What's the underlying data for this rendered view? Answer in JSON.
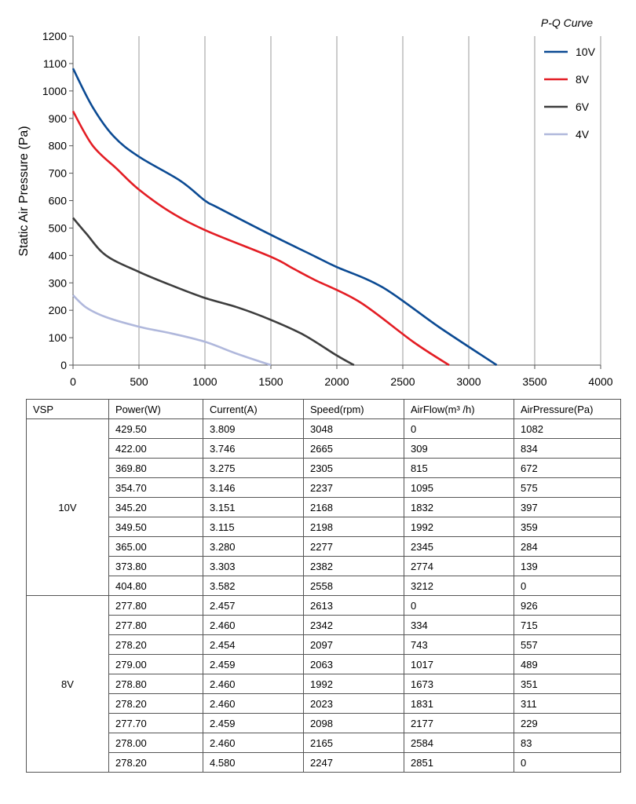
{
  "chart_data": {
    "type": "line",
    "title": "P-Q Curve",
    "xlabel": "",
    "ylabel": "Static Air Pressure  (Pa)",
    "xlim": [
      0,
      4000
    ],
    "ylim": [
      0,
      1200
    ],
    "xticks": [
      0,
      500,
      1000,
      1500,
      2000,
      2500,
      3000,
      3500,
      4000
    ],
    "yticks": [
      0,
      100,
      200,
      300,
      400,
      500,
      600,
      700,
      800,
      900,
      1000,
      1100,
      1200
    ],
    "grid": "vertical",
    "legend_position": "top-right",
    "series": [
      {
        "name": "10V",
        "color": "#0b4a93",
        "x": [
          0,
          150,
          309,
          500,
          815,
          1000,
          1095,
          1500,
          1832,
          1992,
          2345,
          2774,
          3212
        ],
        "y": [
          1082,
          940,
          834,
          760,
          672,
          600,
          575,
          475,
          397,
          359,
          284,
          139,
          0
        ]
      },
      {
        "name": "8V",
        "color": "#e31d24",
        "x": [
          0,
          150,
          334,
          500,
          743,
          1017,
          1500,
          1673,
          1831,
          2177,
          2584,
          2851
        ],
        "y": [
          926,
          800,
          715,
          640,
          557,
          489,
          395,
          351,
          311,
          229,
          83,
          0
        ]
      },
      {
        "name": "6V",
        "color": "#3d3d3d",
        "x": [
          0,
          100,
          250,
          500,
          750,
          1000,
          1250,
          1500,
          1750,
          2000,
          2130
        ],
        "y": [
          537,
          480,
          400,
          340,
          290,
          245,
          210,
          165,
          110,
          35,
          0
        ]
      },
      {
        "name": "4V",
        "color": "#b0b8dc",
        "x": [
          0,
          100,
          250,
          500,
          750,
          1000,
          1250,
          1500
        ],
        "y": [
          255,
          210,
          175,
          140,
          115,
          85,
          40,
          0
        ]
      }
    ]
  },
  "table": {
    "headers": [
      "VSP",
      "Power(W)",
      "Current(A)",
      "Speed(rpm)",
      "AirFlow(m³ /h)",
      "AirPressure(Pa)"
    ],
    "groups": [
      {
        "vsp": "10V",
        "rows": [
          [
            "429.50",
            "3.809",
            "3048",
            "0",
            "1082"
          ],
          [
            "422.00",
            "3.746",
            "2665",
            "309",
            "834"
          ],
          [
            "369.80",
            "3.275",
            "2305",
            "815",
            "672"
          ],
          [
            "354.70",
            "3.146",
            "2237",
            "1095",
            "575"
          ],
          [
            "345.20",
            "3.151",
            "2168",
            "1832",
            "397"
          ],
          [
            "349.50",
            "3.115",
            "2198",
            "1992",
            "359"
          ],
          [
            "365.00",
            "3.280",
            "2277",
            "2345",
            "284"
          ],
          [
            "373.80",
            "3.303",
            "2382",
            "2774",
            "139"
          ],
          [
            "404.80",
            "3.582",
            "2558",
            "3212",
            "0"
          ]
        ]
      },
      {
        "vsp": "8V",
        "rows": [
          [
            "277.80",
            "2.457",
            "2613",
            "0",
            "926"
          ],
          [
            "277.80",
            "2.460",
            "2342",
            "334",
            "715"
          ],
          [
            "278.20",
            "2.454",
            "2097",
            "743",
            "557"
          ],
          [
            "279.00",
            "2.459",
            "2063",
            "1017",
            "489"
          ],
          [
            "278.80",
            "2.460",
            "1992",
            "1673",
            "351"
          ],
          [
            "278.20",
            "2.460",
            "2023",
            "1831",
            "311"
          ],
          [
            "277.70",
            "2.459",
            "2098",
            "2177",
            "229"
          ],
          [
            "278.00",
            "2.460",
            "2165",
            "2584",
            "83"
          ],
          [
            "278.20",
            "4.580",
            "2247",
            "2851",
            "0"
          ]
        ]
      }
    ]
  }
}
